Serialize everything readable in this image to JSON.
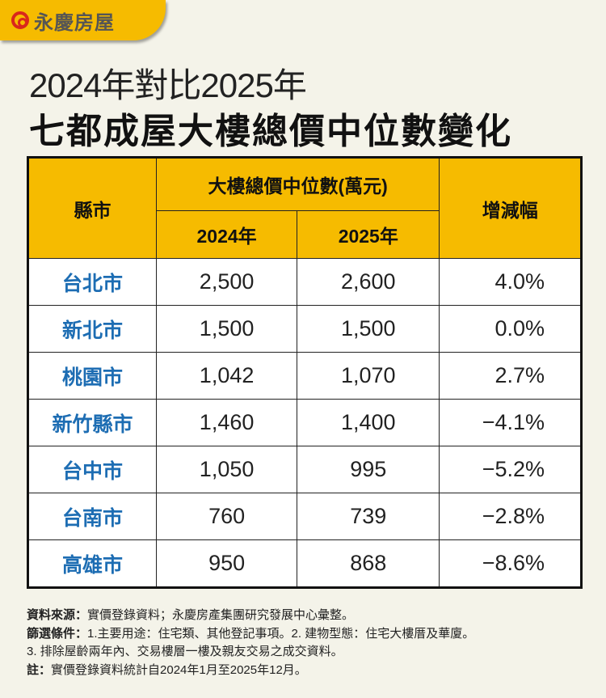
{
  "brand": {
    "name": "永慶房屋",
    "colors": {
      "yellow": "#f6bb00",
      "red": "#d9261c",
      "city_blue": "#1d6db3"
    }
  },
  "title": {
    "line1": "2024年對比2025年",
    "line2": "七都成屋大樓總價中位數變化"
  },
  "table": {
    "headers": {
      "city": "縣市",
      "group": "大樓總價中位數(萬元)",
      "y2024": "2024年",
      "y2025": "2025年",
      "change": "增減幅"
    },
    "rows": [
      {
        "city": "台北市",
        "y2024": "2,500",
        "y2025": "2,600",
        "change": "4.0%"
      },
      {
        "city": "新北市",
        "y2024": "1,500",
        "y2025": "1,500",
        "change": "0.0%"
      },
      {
        "city": "桃園市",
        "y2024": "1,042",
        "y2025": "1,070",
        "change": "2.7%"
      },
      {
        "city": "新竹縣市",
        "y2024": "1,460",
        "y2025": "1,400",
        "change": "−4.1%"
      },
      {
        "city": "台中市",
        "y2024": "1,050",
        "y2025": "995",
        "change": "−5.2%"
      },
      {
        "city": "台南市",
        "y2024": "760",
        "y2025": "739",
        "change": "−2.8%"
      },
      {
        "city": "高雄市",
        "y2024": "950",
        "y2025": "868",
        "change": "−8.6%"
      }
    ]
  },
  "notes": {
    "source_label": "資料來源：",
    "source": "實價登錄資料；永慶房產集團研究發展中心彙整。",
    "filter_label": "篩選條件：",
    "filter1": "1.主要用途：住宅類、其他登記事項。2. 建物型態：住宅大樓厝及華廈。",
    "filter2": "3. 排除屋齡兩年內、交易樓層一樓及親友交易之成交資料。",
    "note_label": "註：",
    "note": "實價登錄資料統計自2024年1月至2025年12月。"
  }
}
